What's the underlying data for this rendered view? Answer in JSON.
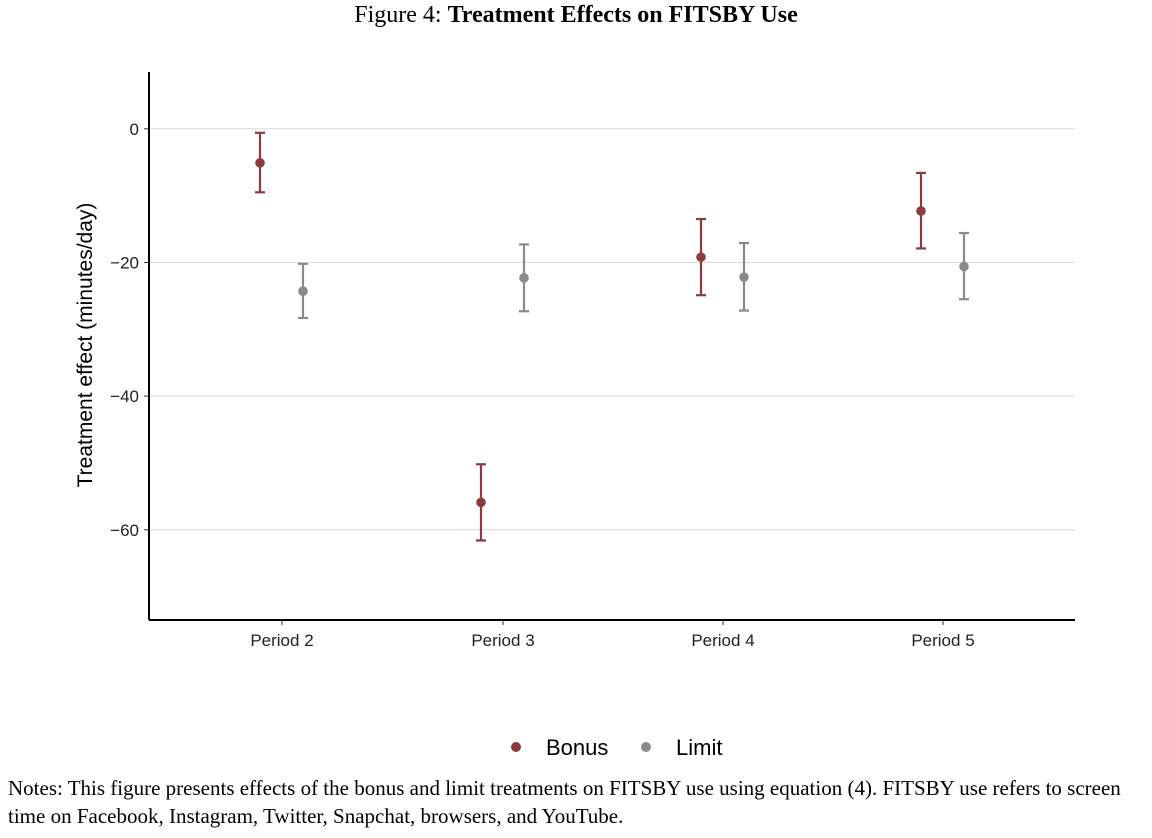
{
  "figure": {
    "label": "Figure 4:",
    "title": "Treatment Effects on FITSBY Use",
    "notes": "Notes: This figure presents effects of the bonus and limit treatments on FITSBY use using equation (4). FITSBY use refers to screen time on Facebook, Instagram, Twitter, Snapchat, browsers, and YouTube."
  },
  "colors": {
    "bonus": "#8b3a3f",
    "limit": "#8a8a8a",
    "grid": "#d9d9d9",
    "axis": "#000000"
  },
  "chart_data": {
    "type": "scatter",
    "title": "Treatment Effects on FITSBY Use",
    "xlabel": "",
    "ylabel": "Treatment effect (minutes/day)",
    "categories": [
      "Period 2",
      "Period 3",
      "Period 4",
      "Period 5"
    ],
    "ylim": [
      -73.5,
      8.5
    ],
    "yticks": [
      0,
      -20,
      -40,
      -60
    ],
    "ytick_labels": [
      "0",
      "−20",
      "−40",
      "−60"
    ],
    "grid": "horizontal",
    "legend": "bottom",
    "series": [
      {
        "name": "Bonus",
        "color": "#8b3a3f",
        "values": [
          -5.1,
          -55.9,
          -19.2,
          -12.3
        ],
        "lower": [
          -9.5,
          -61.6,
          -24.9,
          -17.9
        ],
        "upper": [
          -0.6,
          -50.2,
          -13.5,
          -6.6
        ]
      },
      {
        "name": "Limit",
        "color": "#8a8a8a",
        "values": [
          -24.3,
          -22.3,
          -22.2,
          -20.6
        ],
        "lower": [
          -28.3,
          -27.3,
          -27.2,
          -25.5
        ],
        "upper": [
          -20.2,
          -17.3,
          -17.1,
          -15.6
        ]
      }
    ]
  }
}
